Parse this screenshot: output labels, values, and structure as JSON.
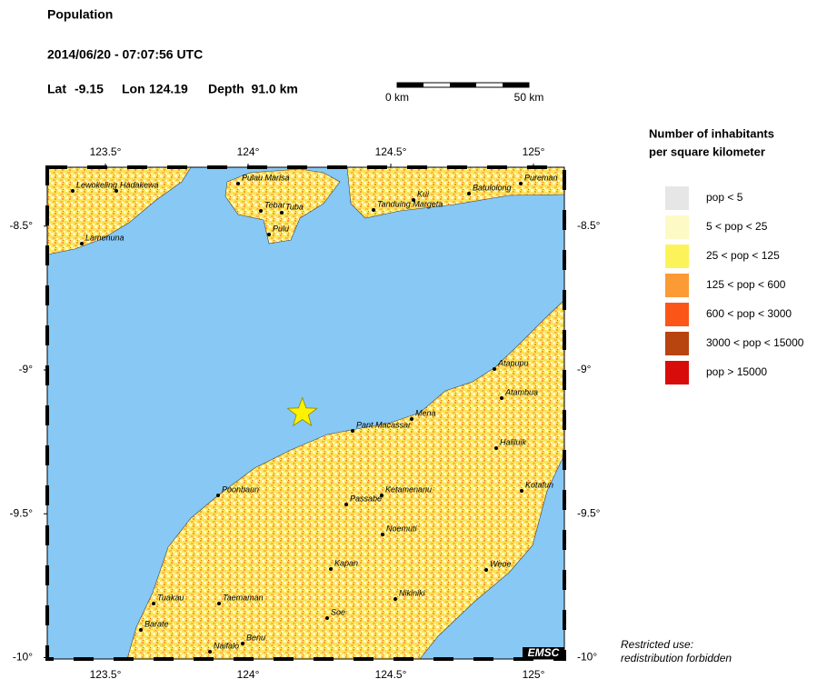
{
  "header": {
    "title": "Population",
    "datetime": "2014/06/20 - 07:07:56 UTC",
    "lat_label": "Lat",
    "lat": -9.15,
    "lon_label": "Lon",
    "lon": 124.19,
    "depth": "Depth  91.0 km"
  },
  "scale_bar": {
    "start": "0 km",
    "end": "50 km"
  },
  "map": {
    "lon_ticks": [
      {
        "value": 123.5,
        "label": "123.5°"
      },
      {
        "value": 124,
        "label": "124°"
      },
      {
        "value": 124.5,
        "label": "124.5°"
      },
      {
        "value": 125,
        "label": "125°"
      }
    ],
    "lat_ticks": [
      {
        "value": -8.5,
        "label": "-8.5°"
      },
      {
        "value": -9,
        "label": "-9°"
      },
      {
        "value": -9.5,
        "label": "-9.5°"
      },
      {
        "value": -10,
        "label": "-10°"
      }
    ],
    "cities": [
      "Lewokeling",
      "Hadakewa",
      "Lamenuna",
      "Pulau Marisa",
      "Tebar",
      "Tuba",
      "Pulu",
      "Kui",
      "Tanduing Margeta",
      "Batulolong",
      "Pureman",
      "Atapupu",
      "Atambua",
      "Mena",
      "Pant Macassar",
      "Haliluik",
      "Kotafun",
      "Poonbaun",
      "Passabe",
      "Ketamenanu",
      "Noemuti",
      "Kapan",
      "Weoe",
      "Tuakau",
      "Taemaman",
      "Nikiniki",
      "Soe",
      "Barate",
      "Benu",
      "Naifalo"
    ],
    "badge": "EMSC"
  },
  "legend": {
    "title": [
      "Number of inhabitants",
      "per square kilometer"
    ],
    "items": [
      {
        "label": "pop < 5",
        "color": "#e6e6e6"
      },
      {
        "label": "5 < pop < 25",
        "color": "#fdfac6"
      },
      {
        "label": "25 < pop < 125",
        "color": "#fcf35a"
      },
      {
        "label": "125 < pop < 600",
        "color": "#fc9a35"
      },
      {
        "label": "600 < pop < 3000",
        "color": "#fb5518"
      },
      {
        "label": "3000 < pop < 15000",
        "color": "#b8440f"
      },
      {
        "label": "pop > 15000",
        "color": "#d90c0c"
      }
    ]
  },
  "footer": [
    "Restricted use:",
    "redistribution forbidden"
  ]
}
